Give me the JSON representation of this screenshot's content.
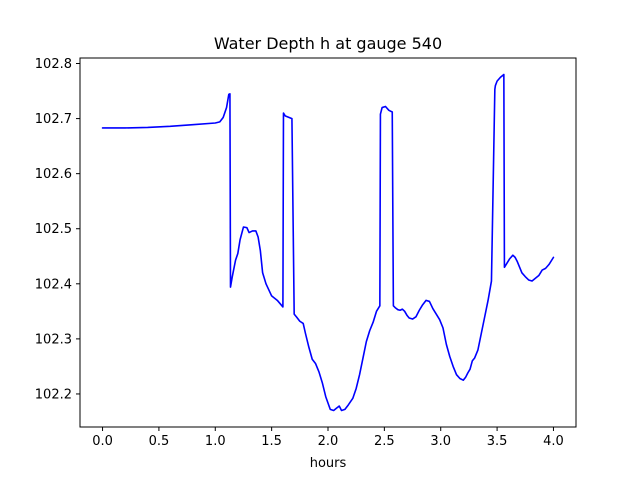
{
  "chart_data": {
    "type": "line",
    "title": "Water Depth h at gauge 540",
    "xlabel": "hours",
    "ylabel": "",
    "xlim": [
      -0.2,
      4.2
    ],
    "ylim": [
      102.14,
      102.81
    ],
    "grid": false,
    "x_ticks": [
      0.0,
      0.5,
      1.0,
      1.5,
      2.0,
      2.5,
      3.0,
      3.5,
      4.0
    ],
    "x_tick_labels": [
      "0.0",
      "0.5",
      "1.0",
      "1.5",
      "2.0",
      "2.5",
      "3.0",
      "3.5",
      "4.0"
    ],
    "y_ticks": [
      102.2,
      102.3,
      102.4,
      102.5,
      102.6,
      102.7,
      102.8
    ],
    "y_tick_labels": [
      "102.2",
      "102.3",
      "102.4",
      "102.5",
      "102.6",
      "102.7",
      "102.8"
    ],
    "series": [
      {
        "color": "#0000ff",
        "x": [
          0.0,
          0.2,
          0.4,
          0.6,
          0.8,
          1.0,
          1.04,
          1.07,
          1.1,
          1.12,
          1.13,
          1.135,
          1.15,
          1.18,
          1.2,
          1.22,
          1.25,
          1.28,
          1.3,
          1.33,
          1.36,
          1.38,
          1.4,
          1.42,
          1.45,
          1.5,
          1.55,
          1.6,
          1.605,
          1.62,
          1.68,
          1.7,
          1.72,
          1.75,
          1.78,
          1.8,
          1.83,
          1.86,
          1.89,
          1.92,
          1.95,
          1.98,
          2.02,
          2.05,
          2.08,
          2.1,
          2.12,
          2.15,
          2.18,
          2.22,
          2.25,
          2.28,
          2.31,
          2.34,
          2.37,
          2.4,
          2.43,
          2.46,
          2.465,
          2.48,
          2.51,
          2.54,
          2.57,
          2.58,
          2.6,
          2.62,
          2.64,
          2.66,
          2.68,
          2.7,
          2.72,
          2.75,
          2.78,
          2.81,
          2.84,
          2.87,
          2.9,
          2.93,
          2.96,
          2.99,
          3.02,
          3.05,
          3.08,
          3.11,
          3.14,
          3.17,
          3.2,
          3.22,
          3.24,
          3.26,
          3.28,
          3.3,
          3.33,
          3.36,
          3.39,
          3.42,
          3.45,
          3.48,
          3.485,
          3.5,
          3.53,
          3.56,
          3.565,
          3.58,
          3.61,
          3.64,
          3.66,
          3.68,
          3.7,
          3.72,
          3.75,
          3.78,
          3.81,
          3.84,
          3.87,
          3.9,
          3.93,
          3.96,
          4.0
        ],
        "y": [
          102.683,
          102.683,
          102.684,
          102.686,
          102.689,
          102.692,
          102.694,
          102.702,
          102.72,
          102.744,
          102.745,
          102.394,
          102.412,
          102.443,
          102.455,
          102.48,
          102.503,
          102.502,
          102.493,
          102.496,
          102.496,
          102.485,
          102.46,
          102.42,
          102.4,
          102.378,
          102.37,
          102.358,
          102.71,
          102.705,
          102.7,
          102.345,
          102.34,
          102.332,
          102.328,
          102.31,
          102.285,
          102.263,
          102.255,
          102.24,
          102.22,
          102.195,
          102.172,
          102.17,
          102.175,
          102.178,
          102.17,
          102.172,
          102.18,
          102.192,
          102.21,
          102.235,
          102.265,
          102.295,
          102.315,
          102.33,
          102.35,
          102.36,
          102.708,
          102.72,
          102.722,
          102.715,
          102.712,
          102.36,
          102.356,
          102.353,
          102.352,
          102.354,
          102.35,
          102.343,
          102.338,
          102.336,
          102.34,
          102.352,
          102.362,
          102.37,
          102.368,
          102.355,
          102.345,
          102.335,
          102.32,
          102.29,
          102.268,
          102.25,
          102.235,
          102.228,
          102.225,
          102.23,
          102.238,
          102.245,
          102.26,
          102.265,
          102.28,
          102.31,
          102.34,
          102.37,
          102.405,
          102.753,
          102.76,
          102.768,
          102.775,
          102.78,
          102.43,
          102.435,
          102.445,
          102.452,
          102.448,
          102.44,
          102.43,
          102.42,
          102.413,
          102.407,
          102.405,
          102.41,
          102.415,
          102.425,
          102.428,
          102.435,
          102.448
        ]
      }
    ]
  }
}
